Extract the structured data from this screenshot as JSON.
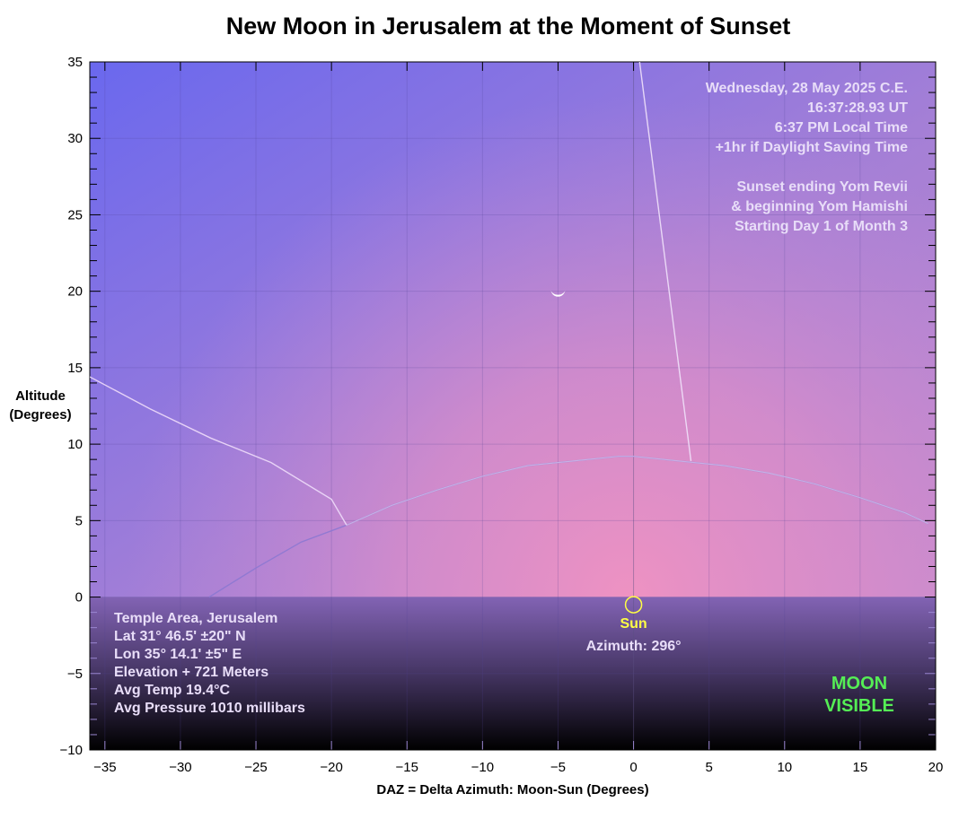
{
  "chart_data": {
    "type": "line",
    "title": "New Moon in Jerusalem at the Moment of Sunset",
    "xlabel": "DAZ = Delta Azimuth: Moon-Sun (Degrees)",
    "ylabel_line1": "Altitude",
    "ylabel_line2": "(Degrees)",
    "xlim": [
      -36,
      20
    ],
    "ylim": [
      -10,
      35
    ],
    "xticks": [
      -35,
      -30,
      -25,
      -20,
      -15,
      -10,
      -5,
      0,
      5,
      10,
      15,
      20
    ],
    "yticks": [
      -10,
      -5,
      0,
      5,
      10,
      15,
      20,
      25,
      30,
      35
    ],
    "grid": true,
    "series": [
      {
        "points": [
          [
            -28.1,
            0.0
          ],
          [
            -25,
            1.9
          ],
          [
            -22,
            3.6
          ],
          [
            -19,
            4.7
          ],
          [
            -16,
            6.0
          ],
          [
            -13,
            7.0
          ],
          [
            -10,
            7.9
          ],
          [
            -7,
            8.6
          ],
          [
            -4,
            8.9
          ],
          [
            -1,
            9.2
          ],
          [
            0,
            9.2
          ],
          [
            3,
            8.9
          ],
          [
            6,
            8.6
          ],
          [
            9,
            8.1
          ],
          [
            12,
            7.4
          ],
          [
            15,
            6.5
          ],
          [
            18,
            5.5
          ],
          [
            19.5,
            4.8
          ]
        ]
      },
      {
        "points": [
          [
            -36,
            14.4
          ],
          [
            -32,
            12.3
          ],
          [
            -28,
            10.4
          ],
          [
            -24,
            8.8
          ],
          [
            -20,
            6.4
          ],
          [
            -19,
            4.7
          ]
        ]
      },
      {
        "points": [
          [
            0.4,
            35
          ],
          [
            3.8,
            8.9
          ]
        ]
      }
    ],
    "moon": {
      "daz": -5.0,
      "alt": 20.0
    },
    "sun": {
      "daz": 0.0,
      "alt": -0.5,
      "label": "Sun",
      "azimuth_label": "Azimuth: 296°"
    },
    "date_info": [
      "Wednesday, 28 May 2025 C.E.",
      "16:37:28.93 UT",
      "6:37 PM Local Time",
      "+1hr if Daylight Saving Time",
      "",
      "Sunset ending Yom Revii",
      "& beginning Yom Hamishi",
      "Starting Day 1 of Month 3"
    ],
    "location_info": [
      "Temple Area, Jerusalem",
      "Lat 31° 46.5' ±20\" N",
      "Lon 35° 14.1' ±5\" E",
      "Elevation + 721 Meters",
      "Avg Temp 19.4°C",
      "Avg Pressure 1010 millibars"
    ],
    "visibility": [
      "MOON",
      "VISIBLE"
    ],
    "colors": {
      "sky_top_left": "#6a68ee",
      "sky_horizon": "#ec92c4",
      "ground_top": "#8263b4",
      "ground_bottom": "#000000",
      "info_text": "#e8ddf8",
      "sun": "#ffff44",
      "visible": "#55ee55"
    }
  }
}
